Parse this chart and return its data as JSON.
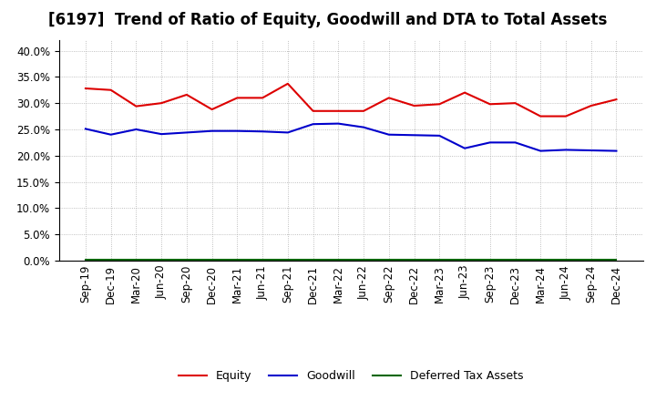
{
  "title": "[6197]  Trend of Ratio of Equity, Goodwill and DTA to Total Assets",
  "x_labels": [
    "Sep-19",
    "Dec-19",
    "Mar-20",
    "Jun-20",
    "Sep-20",
    "Dec-20",
    "Mar-21",
    "Jun-21",
    "Sep-21",
    "Dec-21",
    "Mar-22",
    "Jun-22",
    "Sep-22",
    "Dec-22",
    "Mar-23",
    "Jun-23",
    "Sep-23",
    "Dec-23",
    "Mar-24",
    "Jun-24",
    "Sep-24",
    "Dec-24"
  ],
  "equity": [
    0.328,
    0.325,
    0.294,
    0.3,
    0.316,
    0.288,
    0.31,
    0.31,
    0.337,
    0.285,
    0.285,
    0.285,
    0.31,
    0.295,
    0.298,
    0.32,
    0.298,
    0.3,
    0.275,
    0.275,
    0.295,
    0.307
  ],
  "goodwill": [
    0.251,
    0.24,
    0.25,
    0.241,
    0.244,
    0.247,
    0.247,
    0.246,
    0.244,
    0.26,
    0.261,
    0.254,
    0.24,
    0.239,
    0.238,
    0.214,
    0.225,
    0.225,
    0.209,
    0.211,
    0.21,
    0.209
  ],
  "dta": [
    0.002,
    0.002,
    0.002,
    0.002,
    0.002,
    0.002,
    0.002,
    0.002,
    0.002,
    0.002,
    0.002,
    0.002,
    0.002,
    0.002,
    0.002,
    0.002,
    0.002,
    0.002,
    0.002,
    0.002,
    0.002,
    0.002
  ],
  "equity_color": "#dd0000",
  "goodwill_color": "#0000cc",
  "dta_color": "#006600",
  "ylim": [
    0.0,
    0.42
  ],
  "yticks": [
    0.0,
    0.05,
    0.1,
    0.15,
    0.2,
    0.25,
    0.3,
    0.35,
    0.4
  ],
  "background_color": "#ffffff",
  "grid_color": "#999999",
  "legend_labels": [
    "Equity",
    "Goodwill",
    "Deferred Tax Assets"
  ],
  "title_fontsize": 12,
  "tick_fontsize": 8.5
}
